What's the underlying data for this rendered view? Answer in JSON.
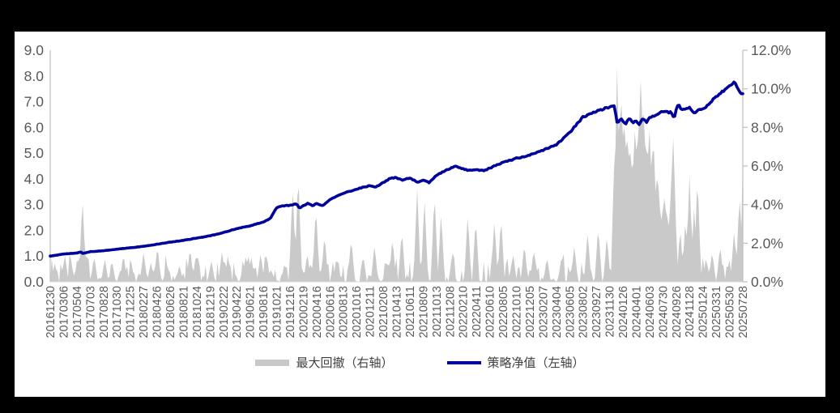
{
  "frame": {
    "background": "#000000",
    "panel_background": "#FFFFFF"
  },
  "chart_data": {
    "type": "combo",
    "title": "",
    "grid": false,
    "plot": {
      "axis_line_color": "#BFBFBF",
      "tick_label_color": "#595959",
      "legend_text_color": "#3F3F3F"
    },
    "x_labels": [
      "20161230",
      "20170306",
      "20170504",
      "20170703",
      "20170828",
      "20171030",
      "20171225",
      "20180227",
      "20180426",
      "20180626",
      "20180821",
      "20181024",
      "20181219",
      "20190222",
      "20190422",
      "20190621",
      "20190816",
      "20191021",
      "20191216",
      "20200219",
      "20200416",
      "20200616",
      "20200813",
      "20201016",
      "20201211",
      "20210208",
      "20210413",
      "20210611",
      "20210809",
      "20211013",
      "20211208",
      "20220210",
      "20220411",
      "20220610",
      "20220805",
      "20221010",
      "20221205",
      "20230207",
      "20230404",
      "20230605",
      "20230802",
      "20230927",
      "20231130",
      "20240126",
      "20240401",
      "20240603",
      "20240730",
      "20240926",
      "20241128",
      "20250124",
      "20250331",
      "20250530",
      "20250728"
    ],
    "left_axis": {
      "min": 0,
      "max": 9,
      "ticks": [
        "9.0",
        "8.0",
        "7.0",
        "6.0",
        "5.0",
        "4.0",
        "3.0",
        "2.0",
        "1.0",
        "0.0"
      ]
    },
    "right_axis": {
      "min": 0,
      "max": 12,
      "ticks": [
        "12.0%",
        "10.0%",
        "8.0%",
        "6.0%",
        "4.0%",
        "2.0%",
        "0.0%"
      ]
    },
    "series": [
      {
        "name": "最大回撤（右轴）",
        "type": "area",
        "axis": "right",
        "color": "#C9C9C9",
        "unit": "%",
        "drawdown_events": [
          [
            0.35,
            1.0
          ],
          [
            1.1,
            1.4
          ],
          [
            1.6,
            0.9
          ],
          [
            2.05,
            1.3
          ],
          [
            2.42,
            4.4
          ],
          [
            2.75,
            1.4
          ],
          [
            3.3,
            1.35
          ],
          [
            4.1,
            1.2
          ],
          [
            4.65,
            1.0
          ],
          [
            5.5,
            1.45
          ],
          [
            6.1,
            0.9
          ],
          [
            7.0,
            1.5
          ],
          [
            7.55,
            1.0
          ],
          [
            8.05,
            1.9
          ],
          [
            8.8,
            0.9
          ],
          [
            9.7,
            0.9
          ],
          [
            10.5,
            1.8
          ],
          [
            10.95,
            1.5
          ],
          [
            12.1,
            1.1
          ],
          [
            12.9,
            1.6
          ],
          [
            13.35,
            1.4
          ],
          [
            14.9,
            1.35
          ],
          [
            15.8,
            1.5
          ],
          [
            16.25,
            1.45
          ],
          [
            17.6,
            1.0
          ],
          [
            18.2,
            5.0
          ],
          [
            18.62,
            5.8
          ],
          [
            19.3,
            1.5
          ],
          [
            19.95,
            4.0
          ],
          [
            20.6,
            2.5
          ],
          [
            21.5,
            1.3
          ],
          [
            22.6,
            2.3
          ],
          [
            23.5,
            1.4
          ],
          [
            24.35,
            1.9
          ],
          [
            25.7,
            2.3
          ],
          [
            26.4,
            2.7
          ],
          [
            27.55,
            4.9
          ],
          [
            28.1,
            4.3
          ],
          [
            28.85,
            4.7
          ],
          [
            29.35,
            3.6
          ],
          [
            30.2,
            1.6
          ],
          [
            31.35,
            3.5
          ],
          [
            31.95,
            3.3
          ],
          [
            33.35,
            3.2
          ],
          [
            33.85,
            3.4
          ],
          [
            34.75,
            1.5
          ],
          [
            35.6,
            2.0
          ],
          [
            36.3,
            1.7
          ],
          [
            37.3,
            1.3
          ],
          [
            38.4,
            1.4
          ],
          [
            39.35,
            1.9
          ],
          [
            40.35,
            2.6
          ],
          [
            41.15,
            2.9
          ],
          [
            41.8,
            2.4
          ],
          [
            47.3,
            2.8
          ],
          [
            47.7,
            3.3
          ],
          [
            48.0,
            5.5
          ],
          [
            48.35,
            4.0
          ],
          [
            48.6,
            5.6
          ],
          [
            49.2,
            1.0
          ],
          [
            49.7,
            1.6
          ],
          [
            50.3,
            1.9
          ],
          [
            50.9,
            0.8
          ],
          [
            51.35,
            2.7
          ],
          [
            51.75,
            4.6
          ],
          [
            52.0,
            6.3,
            0.2
          ]
        ],
        "big_drawdown_zone_profile": [
          [
            42.15,
            1.5
          ],
          [
            42.3,
            5.0
          ],
          [
            42.55,
            10.3
          ],
          [
            42.7,
            8.1
          ],
          [
            42.9,
            9.6
          ],
          [
            43.05,
            7.5
          ],
          [
            43.3,
            8.2
          ],
          [
            43.55,
            6.0
          ],
          [
            43.75,
            6.3
          ],
          [
            44.0,
            8.3
          ],
          [
            44.2,
            8.6
          ],
          [
            44.35,
            9.7
          ],
          [
            44.55,
            7.9
          ],
          [
            44.8,
            8.0
          ],
          [
            45.0,
            7.2
          ],
          [
            45.25,
            6.9
          ],
          [
            45.5,
            5.0
          ],
          [
            45.7,
            4.4
          ],
          [
            45.95,
            3.2
          ],
          [
            46.15,
            4.3
          ],
          [
            46.45,
            2.7
          ],
          [
            46.8,
            7.1
          ],
          [
            47.0,
            2.5
          ]
        ]
      },
      {
        "name": "策略净值（左轴）",
        "type": "line",
        "axis": "left",
        "color": "#00009B",
        "points": [
          [
            0,
            1.0
          ],
          [
            1,
            1.08
          ],
          [
            2,
            1.12
          ],
          [
            2.3,
            1.16
          ],
          [
            2.45,
            1.1
          ],
          [
            3,
            1.17
          ],
          [
            4,
            1.21
          ],
          [
            5,
            1.27
          ],
          [
            6,
            1.32
          ],
          [
            7,
            1.38
          ],
          [
            8,
            1.46
          ],
          [
            9,
            1.54
          ],
          [
            10,
            1.61
          ],
          [
            11,
            1.7
          ],
          [
            12,
            1.79
          ],
          [
            13,
            1.91
          ],
          [
            14,
            2.07
          ],
          [
            15,
            2.17
          ],
          [
            16,
            2.33
          ],
          [
            16.5,
            2.45
          ],
          [
            17,
            2.88
          ],
          [
            17.5,
            2.95
          ],
          [
            18,
            2.97
          ],
          [
            18.5,
            3.03
          ],
          [
            18.7,
            2.86
          ],
          [
            19,
            2.96
          ],
          [
            19.35,
            3.05
          ],
          [
            19.7,
            2.96
          ],
          [
            20,
            3.05
          ],
          [
            20.45,
            2.96
          ],
          [
            21,
            3.2
          ],
          [
            22,
            3.43
          ],
          [
            23,
            3.6
          ],
          [
            24,
            3.74
          ],
          [
            24.4,
            3.68
          ],
          [
            25,
            3.85
          ],
          [
            25.5,
            4.02
          ],
          [
            26,
            4.05
          ],
          [
            26.4,
            3.95
          ],
          [
            27,
            4.04
          ],
          [
            27.6,
            3.86
          ],
          [
            28,
            3.95
          ],
          [
            28.45,
            3.85
          ],
          [
            29,
            4.15
          ],
          [
            29.6,
            4.3
          ],
          [
            30,
            4.4
          ],
          [
            30.4,
            4.48
          ],
          [
            31,
            4.4
          ],
          [
            31.4,
            4.33
          ],
          [
            32,
            4.36
          ],
          [
            32.6,
            4.32
          ],
          [
            33,
            4.42
          ],
          [
            34,
            4.63
          ],
          [
            35,
            4.8
          ],
          [
            36,
            4.92
          ],
          [
            37,
            5.12
          ],
          [
            38,
            5.33
          ],
          [
            39,
            5.8
          ],
          [
            40,
            6.4
          ],
          [
            41,
            6.62
          ],
          [
            42,
            6.8
          ],
          [
            42.35,
            6.83
          ],
          [
            42.6,
            6.1
          ],
          [
            42.8,
            6.35
          ],
          [
            43,
            6.25
          ],
          [
            43.2,
            6.15
          ],
          [
            43.5,
            6.35
          ],
          [
            43.8,
            6.18
          ],
          [
            44,
            6.27
          ],
          [
            44.2,
            6.12
          ],
          [
            44.5,
            6.35
          ],
          [
            44.8,
            6.2
          ],
          [
            45,
            6.38
          ],
          [
            45.3,
            6.45
          ],
          [
            46,
            6.62
          ],
          [
            46.6,
            6.58
          ],
          [
            46.85,
            6.38
          ],
          [
            47,
            6.68
          ],
          [
            47.15,
            6.93
          ],
          [
            47.4,
            6.7
          ],
          [
            48,
            6.78
          ],
          [
            48.35,
            6.55
          ],
          [
            48.7,
            6.72
          ],
          [
            49,
            6.7
          ],
          [
            49.4,
            6.88
          ],
          [
            50,
            7.2
          ],
          [
            51,
            7.6
          ],
          [
            51.4,
            7.78
          ],
          [
            51.7,
            7.45
          ],
          [
            51.85,
            7.32
          ],
          [
            52,
            7.28
          ]
        ]
      }
    ],
    "legend": {
      "position": "bottom",
      "items": [
        "最大回撤（右轴）",
        "策略净值（左轴）"
      ]
    }
  }
}
